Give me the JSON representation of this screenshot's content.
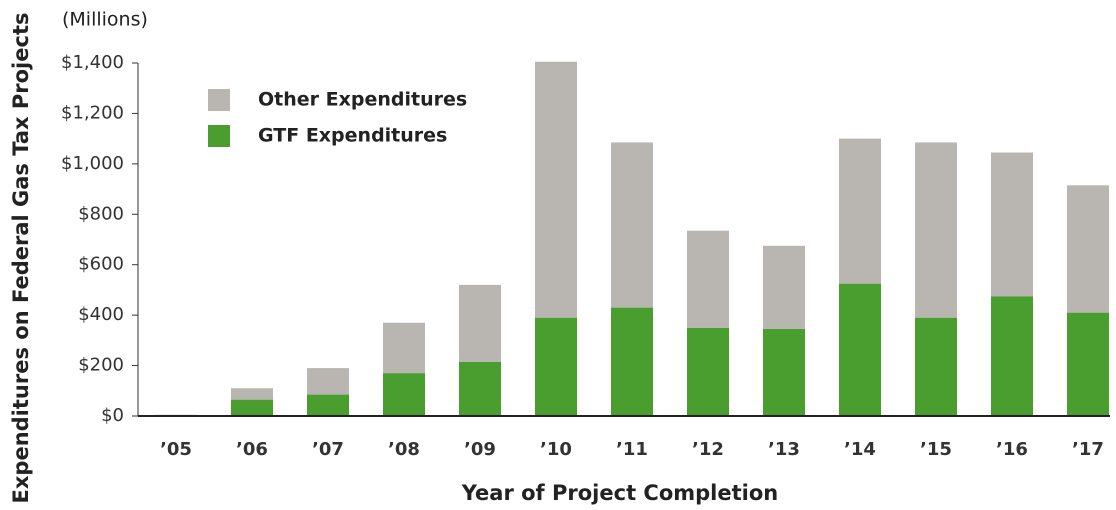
{
  "chart_data": {
    "type": "stacked_bar",
    "unit_label": "(Millions)",
    "x_label": "Year of Project Completion",
    "y_label": "Expenditures on Federal Gas Tax Projects",
    "categories": [
      "’05",
      "’06",
      "’07",
      "’08",
      "’09",
      "’10",
      "’11",
      "’12",
      "’13",
      "’14",
      "’15",
      "’16",
      "’17"
    ],
    "series": [
      {
        "name": "GTF Expenditures",
        "color": "#4a9e2f",
        "values": [
          2,
          65,
          85,
          170,
          215,
          390,
          430,
          350,
          345,
          525,
          390,
          475,
          410
        ]
      },
      {
        "name": "Other Expenditures",
        "color": "#b9b6b1",
        "values": [
          3,
          45,
          105,
          200,
          305,
          1015,
          655,
          385,
          330,
          575,
          695,
          570,
          505
        ]
      }
    ],
    "ylim": [
      0,
      1400
    ],
    "yticks": [
      {
        "value": 0,
        "label": "$0"
      },
      {
        "value": 200,
        "label": "$200"
      },
      {
        "value": 400,
        "label": "$400"
      },
      {
        "value": 600,
        "label": "$600"
      },
      {
        "value": 800,
        "label": "$800"
      },
      {
        "value": 1000,
        "label": "$1,000"
      },
      {
        "value": 1200,
        "label": "$1,200"
      },
      {
        "value": 1400,
        "label": "$1,400"
      }
    ],
    "grid": false
  }
}
